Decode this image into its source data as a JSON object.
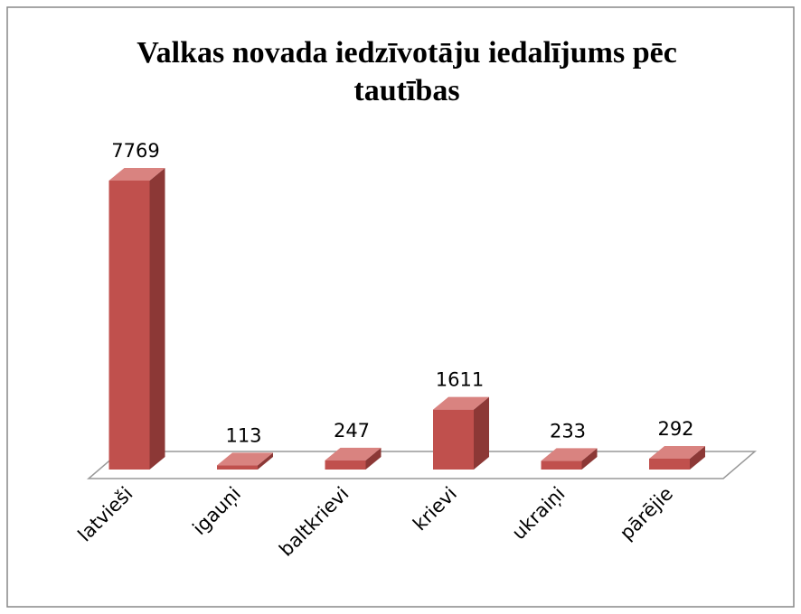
{
  "chart_data": {
    "type": "bar",
    "title": "Valkas novada iedzīvotāju iedalījums pēc tautības",
    "categories": [
      "latvieši",
      "igauņi",
      "baltkrievi",
      "krievi",
      "ukraiņi",
      "pārējie"
    ],
    "values": [
      7769,
      113,
      247,
      1611,
      233,
      292
    ],
    "color": "#c0504d"
  }
}
